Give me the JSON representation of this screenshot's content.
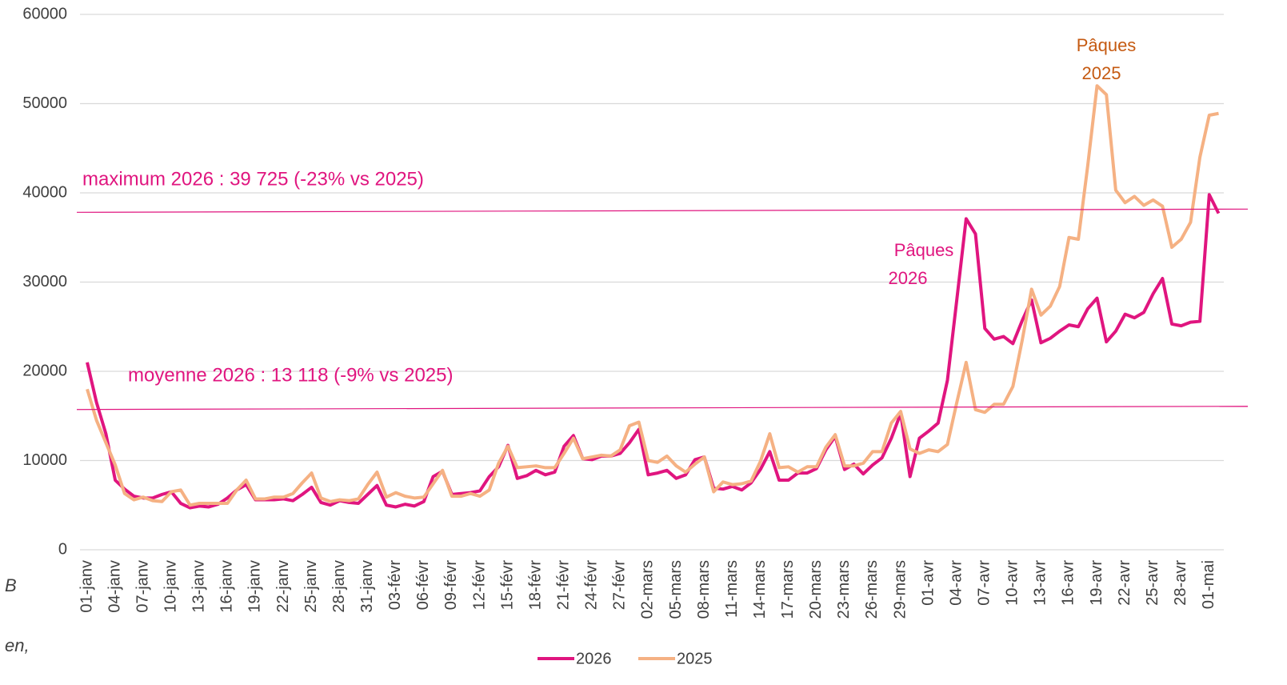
{
  "chart_data": {
    "type": "line",
    "categories": [
      "01-janv",
      null,
      null,
      "04-janv",
      null,
      null,
      "07-janv",
      null,
      null,
      "10-janv",
      null,
      null,
      "13-janv",
      null,
      null,
      "16-janv",
      null,
      null,
      "19-janv",
      null,
      null,
      "22-janv",
      null,
      null,
      "25-janv",
      null,
      null,
      "28-janv",
      null,
      null,
      "31-janv",
      null,
      null,
      "03-févr",
      null,
      null,
      "06-févr",
      null,
      null,
      "09-févr",
      null,
      null,
      "12-févr",
      null,
      null,
      "15-févr",
      null,
      null,
      "18-févr",
      null,
      null,
      "21-févr",
      null,
      null,
      "24-févr",
      null,
      null,
      "27-févr",
      null,
      null,
      "02-mars",
      null,
      null,
      "05-mars",
      null,
      null,
      "08-mars",
      null,
      null,
      "11-mars",
      null,
      null,
      "14-mars",
      null,
      null,
      "17-mars",
      null,
      null,
      "20-mars",
      null,
      null,
      "23-mars",
      null,
      null,
      "26-mars",
      null,
      null,
      "29-mars",
      null,
      null,
      "01-avr",
      null,
      null,
      "04-avr",
      null,
      null,
      "07-avr",
      null,
      null,
      "10-avr",
      null,
      null,
      "13-avr",
      null,
      null,
      "16-avr",
      null,
      null,
      "19-avr",
      null,
      null,
      "22-avr",
      null,
      null,
      "25-avr",
      null,
      null,
      "28-avr",
      null,
      null,
      "01-mai",
      null
    ],
    "series": [
      {
        "name": "2026",
        "color": "#e0157f",
        "values": [
          21000,
          16500,
          13000,
          7800,
          6800,
          6000,
          5800,
          5800,
          6200,
          6500,
          5200,
          4700,
          4900,
          4800,
          5100,
          5800,
          6700,
          7300,
          5600,
          5600,
          5600,
          5700,
          5500,
          6200,
          7000,
          5300,
          5000,
          5500,
          5300,
          5200,
          6200,
          7200,
          5000,
          4800,
          5100,
          4900,
          5400,
          8200,
          8800,
          6200,
          6300,
          6400,
          6600,
          8200,
          9300,
          11700,
          8000,
          8300,
          8900,
          8400,
          8700,
          11600,
          12800,
          10200,
          10100,
          10500,
          10500,
          10800,
          12000,
          13500,
          8400,
          8600,
          8900,
          8000,
          8400,
          10100,
          10400,
          6900,
          6800,
          7100,
          6700,
          7500,
          9000,
          11000,
          7800,
          7800,
          8600,
          8600,
          9100,
          11200,
          12700,
          9000,
          9600,
          8500,
          9500,
          10300,
          12500,
          15300,
          8200,
          12500,
          13300,
          14200,
          19000,
          28000,
          37100,
          35400,
          24800,
          23600,
          23900,
          23100,
          25700,
          28000,
          23200,
          23700,
          24500,
          25200,
          25000,
          27000,
          28200,
          23300,
          24500,
          26400,
          26000,
          26600,
          28700,
          30400,
          25300,
          25100,
          25500,
          25600,
          39800,
          37700
        ]
      },
      {
        "name": "2025",
        "color": "#f5b183",
        "values": [
          18000,
          14500,
          12000,
          9500,
          6300,
          5600,
          5900,
          5500,
          5400,
          6500,
          6700,
          5000,
          5200,
          5200,
          5200,
          5200,
          6700,
          7800,
          5700,
          5700,
          5900,
          5900,
          6300,
          7500,
          8600,
          5800,
          5400,
          5600,
          5500,
          5700,
          7300,
          8700,
          5900,
          6400,
          6000,
          5800,
          5900,
          7400,
          8900,
          6000,
          6000,
          6300,
          6000,
          6700,
          9700,
          11600,
          9200,
          9300,
          9400,
          9200,
          9200,
          10800,
          12500,
          10200,
          10400,
          10600,
          10500,
          11200,
          13900,
          14300,
          10000,
          9800,
          10500,
          9400,
          8700,
          9600,
          10400,
          6500,
          7600,
          7300,
          7400,
          7700,
          9900,
          13000,
          9200,
          9300,
          8700,
          9300,
          9300,
          11500,
          12900,
          9400,
          9400,
          9700,
          11000,
          11000,
          14200,
          15500,
          11300,
          10800,
          11200,
          11000,
          11800,
          16500,
          21000,
          15700,
          15400,
          16300,
          16300,
          18300,
          23500,
          29200,
          26300,
          27300,
          29500,
          35000,
          34800,
          43000,
          52000,
          51000,
          40300,
          38900,
          39600,
          38600,
          39200,
          38500,
          33900,
          34800,
          36700,
          44000,
          48700,
          48900
        ]
      }
    ],
    "ylim": [
      0,
      60000
    ],
    "yticks": [
      0,
      10000,
      20000,
      30000,
      40000,
      50000,
      60000
    ],
    "grid": true,
    "legend": "bottom",
    "reference_lines": [
      {
        "label": "maximum 2026 :  39 725 (-23% vs 2025)",
        "value": 38000,
        "color": "#e0157f"
      },
      {
        "label": "moyenne 2026 :  13 118 (-9% vs 2025)",
        "value": 15900,
        "color": "#e0157f"
      }
    ],
    "annotations": [
      {
        "lines": [
          "Pâques",
          "2026"
        ],
        "color": "#e0157f"
      },
      {
        "lines": [
          "Pâques",
          "2025"
        ],
        "color": "#c55a11"
      }
    ],
    "side_notes": [
      "B",
      "en,"
    ]
  }
}
